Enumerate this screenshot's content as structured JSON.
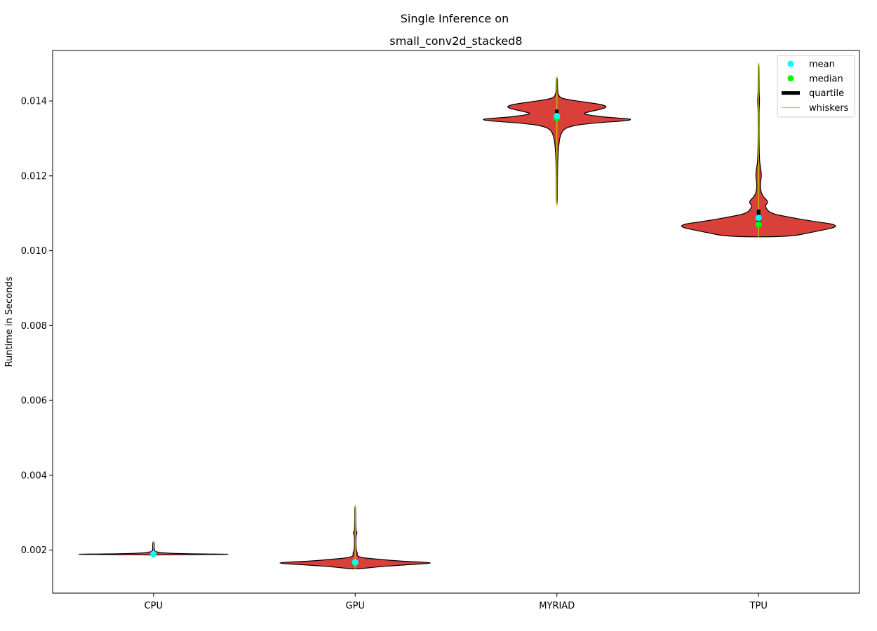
{
  "chart_data": {
    "type": "violin",
    "suptitle": "Single Inference on",
    "title": "small_conv2d_stacked8",
    "ylabel": "Runtime in Seconds",
    "xlabel": "",
    "ylim": [
      0.00085,
      0.01535
    ],
    "yticks": [
      0.002,
      0.004,
      0.006,
      0.008,
      0.01,
      0.012,
      0.014
    ],
    "ytick_labels": [
      "0.002",
      "0.004",
      "0.006",
      "0.008",
      "0.010",
      "0.012",
      "0.014"
    ],
    "categories": [
      "CPU",
      "GPU",
      "MYRIAD",
      "TPU"
    ],
    "violin_color": "#d9403a",
    "stats": [
      {
        "name": "CPU",
        "min": 0.00187,
        "max": 0.00222,
        "q1": 0.00188,
        "q3": 0.00191,
        "median": 0.00189,
        "mean": 0.0019,
        "density": [
          [
            0.00187,
            0.03
          ],
          [
            0.00188,
            0.55
          ],
          [
            0.00189,
            1.0
          ],
          [
            0.0019,
            0.45
          ],
          [
            0.00192,
            0.12
          ],
          [
            0.00196,
            0.02
          ],
          [
            0.002,
            0.01
          ],
          [
            0.0021,
            0.008
          ],
          [
            0.00222,
            0.008
          ]
        ]
      },
      {
        "name": "GPU",
        "min": 0.0015,
        "max": 0.00318,
        "q1": 0.00162,
        "q3": 0.00173,
        "median": 0.00166,
        "mean": 0.00168,
        "density": [
          [
            0.0015,
            0.05
          ],
          [
            0.00155,
            0.25
          ],
          [
            0.0016,
            0.55
          ],
          [
            0.00166,
            1.0
          ],
          [
            0.0017,
            0.55
          ],
          [
            0.00176,
            0.25
          ],
          [
            0.0018,
            0.06
          ],
          [
            0.00187,
            0.015
          ],
          [
            0.0019,
            0.03
          ],
          [
            0.002,
            0.01
          ],
          [
            0.0022,
            0.008
          ],
          [
            0.0024,
            0.01
          ],
          [
            0.00247,
            0.025
          ],
          [
            0.0025,
            0.01
          ],
          [
            0.0027,
            0.006
          ],
          [
            0.0029,
            0.005
          ],
          [
            0.00318,
            0.005
          ]
        ]
      },
      {
        "name": "MYRIAD",
        "min": 0.01122,
        "max": 0.01463,
        "q1": 0.01352,
        "q3": 0.01377,
        "median": 0.01355,
        "mean": 0.0136,
        "density": [
          [
            0.01122,
            0.006
          ],
          [
            0.0118,
            0.006
          ],
          [
            0.0122,
            0.008
          ],
          [
            0.0125,
            0.012
          ],
          [
            0.0128,
            0.02
          ],
          [
            0.0131,
            0.04
          ],
          [
            0.0133,
            0.1
          ],
          [
            0.0134,
            0.35
          ],
          [
            0.0135,
            1.0
          ],
          [
            0.01357,
            0.55
          ],
          [
            0.01365,
            0.3
          ],
          [
            0.0137,
            0.35
          ],
          [
            0.01382,
            0.6
          ],
          [
            0.0139,
            0.55
          ],
          [
            0.01398,
            0.3
          ],
          [
            0.01403,
            0.15
          ],
          [
            0.01408,
            0.04
          ],
          [
            0.0142,
            0.01
          ],
          [
            0.0144,
            0.007
          ],
          [
            0.01463,
            0.006
          ]
        ]
      },
      {
        "name": "TPU",
        "min": 0.01037,
        "max": 0.015,
        "q1": 0.01065,
        "q3": 0.0111,
        "median": 0.0107,
        "mean": 0.01088,
        "density": [
          [
            0.01037,
            0.35
          ],
          [
            0.0105,
            0.65
          ],
          [
            0.01067,
            1.0
          ],
          [
            0.0108,
            0.6
          ],
          [
            0.0109,
            0.35
          ],
          [
            0.011,
            0.13
          ],
          [
            0.0112,
            0.07
          ],
          [
            0.0113,
            0.12
          ],
          [
            0.01145,
            0.05
          ],
          [
            0.0116,
            0.025
          ],
          [
            0.0118,
            0.02
          ],
          [
            0.012,
            0.035
          ],
          [
            0.0122,
            0.025
          ],
          [
            0.0124,
            0.01
          ],
          [
            0.013,
            0.005
          ],
          [
            0.0135,
            0.005
          ],
          [
            0.0138,
            0.006
          ],
          [
            0.014,
            0.012
          ],
          [
            0.0142,
            0.006
          ],
          [
            0.0145,
            0.005
          ],
          [
            0.015,
            0.004
          ]
        ]
      }
    ],
    "legend": {
      "position": "upper right",
      "entries": [
        {
          "label": "mean",
          "marker": "dot",
          "color": "#00ffff"
        },
        {
          "label": "median",
          "marker": "dot",
          "color": "#00ff00"
        },
        {
          "label": "quartile",
          "marker": "thick-line",
          "color": "#000000"
        },
        {
          "label": "whiskers",
          "marker": "line",
          "color": "#cccc00"
        }
      ]
    }
  }
}
